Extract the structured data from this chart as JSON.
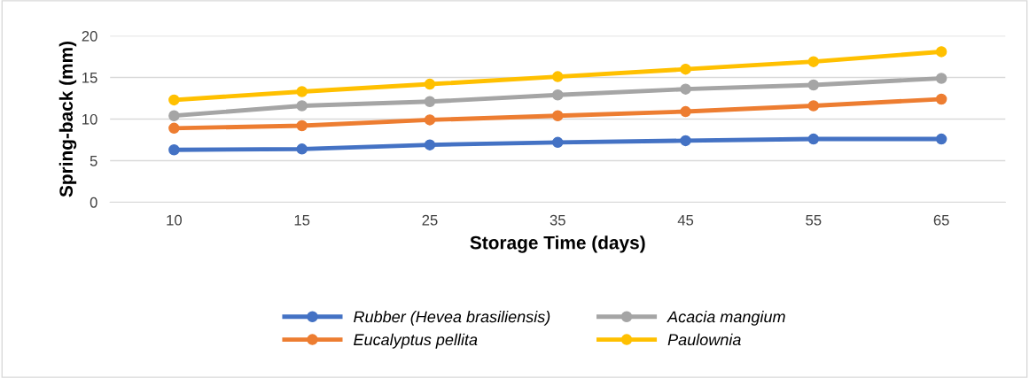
{
  "chart_data": {
    "type": "line",
    "xlabel": "Storage Time (days)",
    "ylabel": "Spring-back (mm)",
    "categories": [
      "10",
      "15",
      "25",
      "35",
      "45",
      "55",
      "65"
    ],
    "series": [
      {
        "name": "Rubber (Hevea brasiliensis)",
        "color": "#4472c4",
        "values": [
          6.3,
          6.4,
          6.9,
          7.2,
          7.4,
          7.6,
          7.6
        ]
      },
      {
        "name": "Eucalyptus pellita",
        "color": "#ed7d31",
        "values": [
          8.9,
          9.2,
          9.9,
          10.4,
          10.9,
          11.6,
          12.4
        ]
      },
      {
        "name": "Acacia mangium",
        "color": "#a5a5a5",
        "values": [
          10.4,
          11.6,
          12.1,
          12.9,
          13.6,
          14.1,
          14.9
        ]
      },
      {
        "name": "Paulownia",
        "color": "#ffc000",
        "values": [
          12.3,
          13.3,
          14.2,
          15.1,
          16.0,
          16.9,
          18.1
        ]
      }
    ],
    "ylim": [
      0,
      20
    ],
    "yticks": [
      0,
      5,
      10,
      15,
      20
    ],
    "grid": "y",
    "legend": "bottom",
    "marker": "circle",
    "line_style": "solid"
  }
}
